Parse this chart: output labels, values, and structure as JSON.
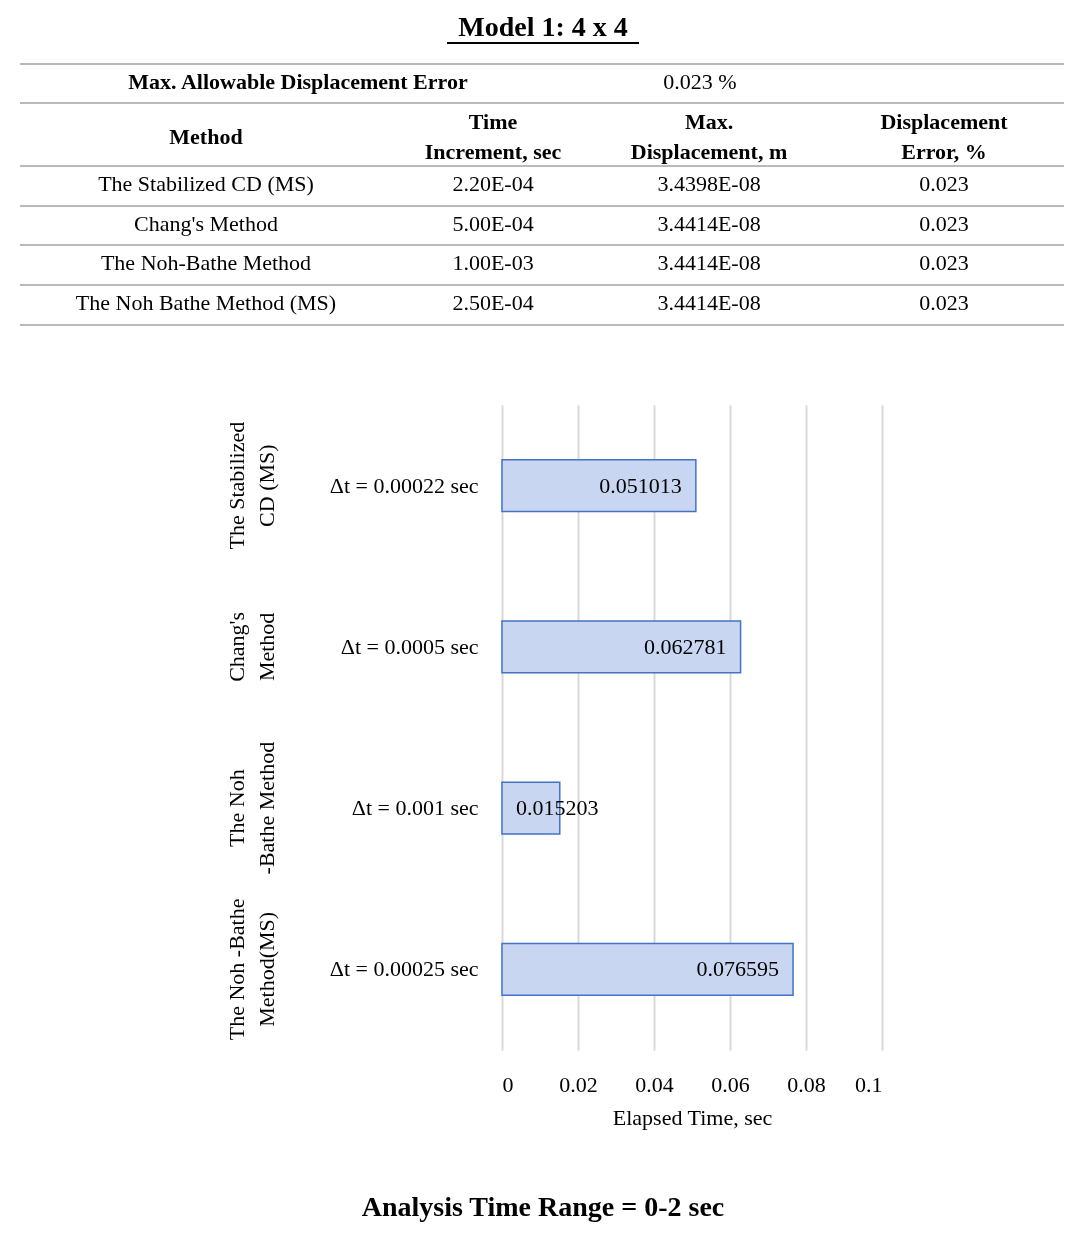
{
  "chart_data": {
    "type": "bar",
    "orientation": "horizontal",
    "title": "Model 1: 4 x 4",
    "xlabel": "Elapsed Time, sec",
    "categories": [
      "Δt = 0.00022  sec",
      "Δt = 0.0005  sec",
      "Δt = 0.001  sec",
      "Δt = 0.00025  sec"
    ],
    "values": [
      0.051013,
      0.062781,
      0.015203,
      0.076595
    ],
    "color": "#4472c4",
    "data_labels": true,
    "xlim": [
      0,
      0.1
    ],
    "xticks": [
      0,
      0.02,
      0.04,
      0.06,
      0.08,
      0.1
    ],
    "grid": "x",
    "annotations": [
      "Max. Allowable Displacement Error",
      "0.023 %",
      "Method",
      "Time Increment, sec",
      "Max. Displacement, m",
      "Displacement Error, %",
      "The Stabilized CD (MS)",
      "2.20E-04",
      "3.4398E-08",
      "0.023",
      "Chang's Method",
      "5.00E-04",
      "3.4414E-08",
      "0.023",
      "The Noh-Bathe Method",
      "1.00E-03",
      "3.4414E-08",
      "0.023",
      "The Noh Bathe Method (MS)",
      "2.50E-04",
      "3.4414E-08",
      "0.023",
      "Analysis Time Range = 0-2 sec",
      "The Stabilized CD (MS)",
      "Chang's Method",
      "The Noh -Bathe Method",
      "The Noh -Bathe Method(MS)"
    ]
  }
}
